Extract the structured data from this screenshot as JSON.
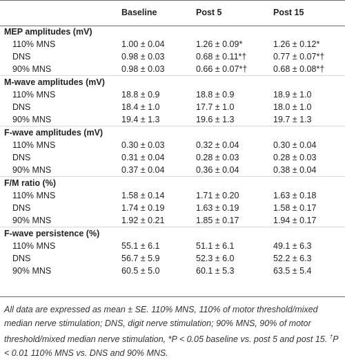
{
  "columns": [
    "",
    "Baseline",
    "Post 5",
    "Post 15"
  ],
  "groups": [
    {
      "title": "MEP amplitudes (mV)",
      "rows": [
        {
          "label": "110% MNS",
          "values": [
            "1.00 ± 0.04",
            "1.26 ± 0.09*",
            "1.26 ± 0.12*"
          ]
        },
        {
          "label": "DNS",
          "values": [
            "0.98 ± 0.03",
            "0.68 ± 0.11*†",
            "0.77 ± 0.07*†"
          ]
        },
        {
          "label": "90% MNS",
          "values": [
            "0.98 ± 0.03",
            "0.66 ± 0.07*†",
            "0.68 ± 0.08*†"
          ]
        }
      ]
    },
    {
      "title": "M-wave amplitudes (mV)",
      "rows": [
        {
          "label": "110% MNS",
          "values": [
            "18.8 ± 0.9",
            "18.8 ± 0.9",
            "18.9 ± 1.0"
          ]
        },
        {
          "label": "DNS",
          "values": [
            "18.4 ± 1.0",
            "17.7 ± 1.0",
            "18.0 ± 1.0"
          ]
        },
        {
          "label": "90% MNS",
          "values": [
            "19.4 ± 1.3",
            "19.6 ± 1.3",
            "19.7 ± 1.3"
          ]
        }
      ]
    },
    {
      "title": "F-wave amplitudes (mV)",
      "rows": [
        {
          "label": "110% MNS",
          "values": [
            "0.30 ± 0.03",
            "0.32 ± 0.04",
            "0.30 ± 0.04"
          ]
        },
        {
          "label": "DNS",
          "values": [
            "0.31 ± 0.04",
            "0.28 ± 0.03",
            "0.28 ± 0.03"
          ]
        },
        {
          "label": "90% MNS",
          "values": [
            "0.37 ± 0.04",
            "0.36 ± 0.04",
            "0.38 ± 0.04"
          ]
        }
      ]
    },
    {
      "title": "F/M ratio (%)",
      "rows": [
        {
          "label": "110% MNS",
          "values": [
            "1.58 ± 0.14",
            "1.71 ± 0.20",
            "1.63 ± 0.18"
          ]
        },
        {
          "label": "DNS",
          "values": [
            "1.74 ± 0.19",
            "1.63 ± 0.19",
            "1.58 ± 0.17"
          ]
        },
        {
          "label": "90% MNS",
          "values": [
            "1.92 ± 0.21",
            "1.85 ± 0.17",
            "1.94 ± 0.17"
          ]
        }
      ]
    },
    {
      "title": "F-wave persistence (%)",
      "rows": [
        {
          "label": "110% MNS",
          "values": [
            "55.1 ± 6.1",
            "51.1 ± 6.1",
            "49.1 ± 6.3"
          ]
        },
        {
          "label": "DNS",
          "values": [
            "56.7 ± 5.9",
            "52.3 ± 6.0",
            "52.2 ± 6.3"
          ]
        },
        {
          "label": "90% MNS",
          "values": [
            "60.5 ± 5.0",
            "60.1 ± 5.3",
            "63.5 ± 5.4"
          ]
        }
      ]
    }
  ],
  "footnote": {
    "part1": "All data are expressed as mean ± SE. 110% MNS, 110% of motor threshold/mixed median nerve stimulation; DNS, digit nerve stimulation; 90% MNS, 90% of motor threshold/mixed median nerve stimulation, *P < 0.05 baseline vs. post 5 and post 15. ",
    "dagger": "†",
    "part2": "P < 0.01 110% MNS vs. DNS and 90% MNS."
  }
}
